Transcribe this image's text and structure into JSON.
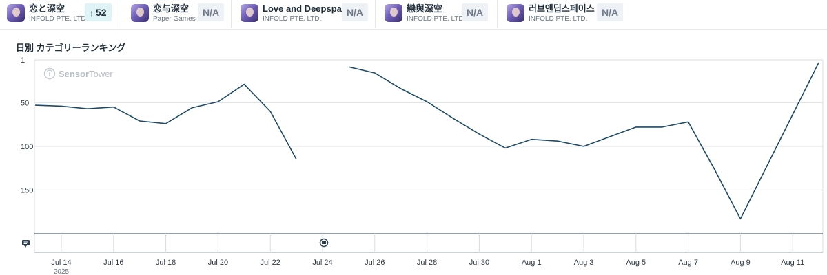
{
  "apps": [
    {
      "name": "恋と深空",
      "publisher": "INFOLD PTE. LTD.",
      "badge": "52",
      "badge_type": "up"
    },
    {
      "name": "恋与深空",
      "publisher": "Paper Games",
      "badge": "N/A",
      "badge_type": "na"
    },
    {
      "name": "Love and Deepspace",
      "publisher": "INFOLD PTE. LTD.",
      "badge": "N/A",
      "badge_type": "na"
    },
    {
      "name": "戀與深空",
      "publisher": "INFOLD PTE. LTD.",
      "badge": "N/A",
      "badge_type": "na"
    },
    {
      "name": "러브앤딥스페이스",
      "publisher": "INFOLD PTE. LTD.",
      "badge": "N/A",
      "badge_type": "na"
    }
  ],
  "watermark": {
    "part1": "Sensor",
    "part2": "Tower"
  },
  "colors": {
    "line": "#1d4a66",
    "grid": "#d9dde2",
    "badge_up_bg": "#dff4f6",
    "badge_na_bg": "#eef1f5"
  },
  "chart_data": {
    "type": "line",
    "title": "日別 カテゴリーランキング",
    "y_inverted": true,
    "ylim": [
      1,
      200
    ],
    "yticks": [
      1,
      50,
      100,
      150
    ],
    "grid": true,
    "x_tick_labels": [
      "Jul 14",
      "Jul 16",
      "Jul 18",
      "Jul 20",
      "Jul 22",
      "Jul 24",
      "Jul 26",
      "Jul 28",
      "Jul 30",
      "Aug 1",
      "Aug 3",
      "Aug 5",
      "Aug 7",
      "Aug 9",
      "Aug 11"
    ],
    "x_year_label": "2025",
    "series": [
      {
        "values": [
          {
            "x": "Jul 13",
            "y": 53
          },
          {
            "x": "Jul 14",
            "y": 54
          },
          {
            "x": "Jul 15",
            "y": 57
          },
          {
            "x": "Jul 16",
            "y": 55
          },
          {
            "x": "Jul 17",
            "y": 71
          },
          {
            "x": "Jul 18",
            "y": 74
          },
          {
            "x": "Jul 19",
            "y": 56
          },
          {
            "x": "Jul 20",
            "y": 49
          },
          {
            "x": "Jul 21",
            "y": 29
          },
          {
            "x": "Jul 22",
            "y": 60
          },
          {
            "x": "Jul 23",
            "y": 115
          },
          {
            "x": "Jul 24",
            "y": null
          },
          {
            "x": "Jul 25",
            "y": 9
          },
          {
            "x": "Jul 26",
            "y": 16
          },
          {
            "x": "Jul 27",
            "y": 34
          },
          {
            "x": "Jul 28",
            "y": 49
          },
          {
            "x": "Jul 29",
            "y": 68
          },
          {
            "x": "Jul 30",
            "y": 86
          },
          {
            "x": "Jul 31",
            "y": 102
          },
          {
            "x": "Aug 1",
            "y": 92
          },
          {
            "x": "Aug 2",
            "y": 94
          },
          {
            "x": "Aug 3",
            "y": 100
          },
          {
            "x": "Aug 4",
            "y": 89
          },
          {
            "x": "Aug 5",
            "y": 78
          },
          {
            "x": "Aug 6",
            "y": 78
          },
          {
            "x": "Aug 7",
            "y": 72
          },
          {
            "x": "Aug 8",
            "y": 126
          },
          {
            "x": "Aug 9",
            "y": 183
          },
          {
            "x": "Aug 12",
            "y": 4
          }
        ]
      }
    ]
  }
}
